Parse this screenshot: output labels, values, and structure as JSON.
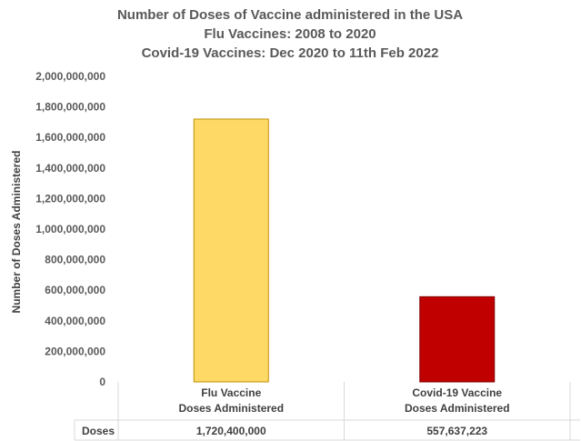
{
  "chart_data": {
    "type": "bar",
    "title_lines": [
      "Number of Doses of Vaccine administered in the USA",
      "Flu Vaccines: 2008 to 2020",
      "Covid-19 Vaccines: Dec 2020 to 11th Feb 2022"
    ],
    "ylabel": "Number of Doses Administered",
    "xlabel": "",
    "ylim": [
      0,
      2000000000
    ],
    "y_tick_values": [
      0,
      200000000,
      400000000,
      600000000,
      800000000,
      1000000000,
      1200000000,
      1400000000,
      1600000000,
      1800000000,
      2000000000
    ],
    "y_tick_labels": [
      "0",
      "200,000,000",
      "400,000,000",
      "600,000,000",
      "800,000,000",
      "1,000,000,000",
      "1,200,000,000",
      "1,400,000,000",
      "1,600,000,000",
      "1,800,000,000",
      "2,000,000,000"
    ],
    "categories": [
      [
        "Flu Vaccine",
        "Doses Administered"
      ],
      [
        "Covid-19 Vaccine",
        "Doses Administered"
      ]
    ],
    "series": [
      {
        "name": "Doses",
        "values": [
          1720400000,
          557637223
        ],
        "value_labels": [
          "1,720,400,000",
          "557,637,223"
        ],
        "colors": [
          "#FFD966",
          "#C00000"
        ],
        "border_colors": [
          "#BF9000",
          "#7F0000"
        ]
      }
    ],
    "grid": false,
    "legend": "data-table"
  }
}
